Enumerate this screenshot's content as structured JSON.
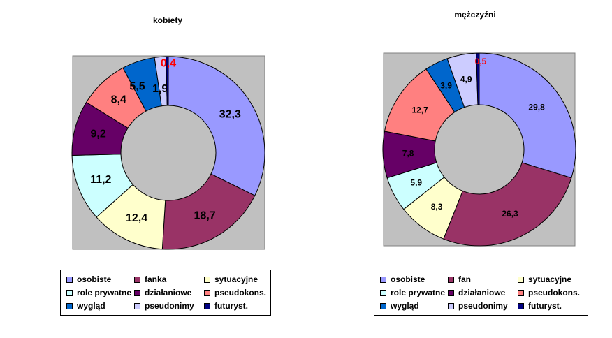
{
  "chart_data": [
    {
      "type": "pie",
      "variant": "donut",
      "title": "kobiety",
      "categories": [
        "osobiste",
        "fanka",
        "sytuacyjne",
        "role prywatne",
        "działaniowe",
        "pseudokons.",
        "wygląd",
        "pseudonimy",
        "futuryst."
      ],
      "values": [
        32.3,
        18.7,
        12.4,
        11.2,
        9.2,
        8.4,
        5.5,
        1.9,
        0.4
      ],
      "labels": [
        "32,3",
        "18,7",
        "12,4",
        "11,2",
        "9,2",
        "8,4",
        "5,5",
        "1,9",
        "0,4"
      ],
      "colors": [
        "#9999FF",
        "#993366",
        "#FFFFCC",
        "#CCFFFF",
        "#660066",
        "#FF8080",
        "#0066CC",
        "#CCCCFF",
        "#000080"
      ],
      "label_colors": [
        "#000000",
        "#000000",
        "#000000",
        "#000000",
        "#000000",
        "#000000",
        "#000000",
        "#000000",
        "#FF0000"
      ],
      "plot_background": "#C0C0C0",
      "legend_position": "bottom"
    },
    {
      "type": "pie",
      "variant": "donut",
      "title": "mężczyźni",
      "categories": [
        "osobiste",
        "fan",
        "sytuacyjne",
        "role prywatne",
        "działaniowe",
        "pseudokons.",
        "wygląd",
        "pseudonimy",
        "futuryst."
      ],
      "values": [
        29.8,
        26.3,
        8.3,
        5.9,
        7.8,
        12.7,
        3.9,
        4.9,
        0.5
      ],
      "labels": [
        "29,8",
        "26,3",
        "8,3",
        "5,9",
        "7,8",
        "12,7",
        "3,9",
        "4,9",
        "0,5"
      ],
      "colors": [
        "#9999FF",
        "#993366",
        "#FFFFCC",
        "#CCFFFF",
        "#660066",
        "#FF8080",
        "#0066CC",
        "#CCCCFF",
        "#000080"
      ],
      "label_colors": [
        "#000000",
        "#000000",
        "#000000",
        "#000000",
        "#000000",
        "#000000",
        "#000000",
        "#000000",
        "#FF0000"
      ],
      "plot_background": "#C0C0C0",
      "legend_position": "bottom"
    }
  ]
}
